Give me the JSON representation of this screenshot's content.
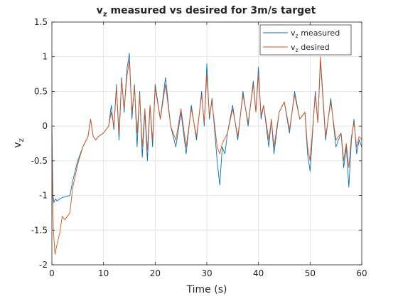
{
  "chart_data": {
    "type": "line",
    "title": {
      "main": "v",
      "sub": "z",
      "rest": " measured vs desired for 3m/s target"
    },
    "xlabel": "Time (s)",
    "ylabel": {
      "main": "v",
      "sub": "z"
    },
    "xlim": [
      0,
      60
    ],
    "ylim": [
      -2,
      1.5
    ],
    "xticks": [
      0,
      10,
      20,
      30,
      40,
      50,
      60
    ],
    "yticks": [
      -2,
      -1.5,
      -1,
      -0.5,
      0,
      0.5,
      1,
      1.5
    ],
    "xtick_labels": [
      "0",
      "10",
      "20",
      "30",
      "40",
      "50",
      "60"
    ],
    "ytick_labels": [
      "-2",
      "-1.5",
      "-1",
      "-0.5",
      "0",
      "0.5",
      "1",
      "1.5"
    ],
    "grid": true,
    "legend_position": "top-right",
    "series": [
      {
        "name": {
          "main": "v",
          "sub": "z",
          "rest": " measured"
        },
        "color": "#0072BD",
        "x": [
          0,
          0.1,
          0.2,
          0.4,
          0.7,
          1,
          1.5,
          2,
          2.5,
          3,
          3.5,
          4,
          5,
          6,
          7,
          7.5,
          8,
          8.5,
          9,
          10,
          11,
          11.5,
          12,
          12.5,
          13,
          13.5,
          14,
          14.5,
          15,
          15.5,
          16,
          16.5,
          17,
          17.5,
          18,
          18.5,
          19,
          19.5,
          20,
          21,
          22,
          23,
          24,
          25,
          26,
          27,
          28,
          29,
          29.5,
          30,
          30.5,
          31,
          32,
          32.5,
          33,
          33.5,
          34,
          35,
          36,
          37,
          38,
          39,
          39.5,
          40,
          40.5,
          41,
          42,
          42.5,
          43,
          44,
          45,
          46,
          47,
          48,
          49,
          49.5,
          50,
          51,
          51.5,
          52,
          53,
          54,
          55,
          56,
          56.5,
          57,
          57.5,
          58,
          58.5,
          59,
          59.5,
          60
        ],
        "y": [
          0,
          -0.5,
          -1.0,
          -1.1,
          -1.05,
          -1.08,
          -1.05,
          -1.03,
          -1.02,
          -1.01,
          -1.0,
          -0.8,
          -0.5,
          -0.3,
          -0.15,
          0.1,
          -0.15,
          -0.2,
          -0.15,
          -0.1,
          0.0,
          0.3,
          -0.05,
          0.6,
          -0.2,
          0.7,
          0.2,
          0.8,
          1.05,
          0.1,
          0.6,
          -0.3,
          0.5,
          -0.45,
          0.2,
          -0.5,
          0.3,
          -0.3,
          0.6,
          0.1,
          0.7,
          0.0,
          -0.3,
          0.2,
          -0.4,
          0.3,
          -0.2,
          0.5,
          0.0,
          0.9,
          0.1,
          0.4,
          -0.5,
          -0.85,
          -0.3,
          -0.4,
          -0.1,
          0.3,
          -0.2,
          0.5,
          0.0,
          0.65,
          0.2,
          0.85,
          0.1,
          0.3,
          -0.3,
          0.1,
          -0.4,
          0.2,
          0.35,
          -0.1,
          0.5,
          0.1,
          0.2,
          -0.4,
          -0.65,
          0.5,
          0.05,
          0.95,
          -0.2,
          0.4,
          -0.3,
          -0.1,
          -0.6,
          -0.3,
          -0.88,
          -0.2,
          0.1,
          -0.4,
          -0.2,
          -0.3
        ]
      },
      {
        "name": {
          "main": "v",
          "sub": "z",
          "rest": " desired"
        },
        "color": "#D95319",
        "x": [
          0,
          0.1,
          0.3,
          0.6,
          1,
          1.5,
          2,
          2.5,
          3,
          3.5,
          4,
          5,
          6,
          7,
          7.5,
          8,
          8.5,
          9,
          10,
          11,
          11.5,
          12,
          12.5,
          13,
          13.5,
          14,
          14.5,
          15,
          15.5,
          16,
          16.5,
          17,
          17.5,
          18,
          18.5,
          19,
          19.5,
          20,
          21,
          22,
          23,
          24,
          25,
          26,
          27,
          28,
          29,
          29.5,
          30,
          30.5,
          31,
          32,
          32.5,
          33,
          34,
          35,
          36,
          37,
          38,
          39,
          39.5,
          40,
          40.5,
          41,
          42,
          42.5,
          43,
          44,
          45,
          46,
          47,
          48,
          49,
          49.5,
          50,
          51,
          51.5,
          52,
          53,
          54,
          55,
          56,
          56.5,
          57,
          57.5,
          58,
          58.5,
          59,
          59.5,
          60
        ],
        "y": [
          0,
          -0.9,
          -1.5,
          -1.85,
          -1.7,
          -1.55,
          -1.3,
          -1.35,
          -1.3,
          -1.25,
          -0.9,
          -0.55,
          -0.3,
          -0.15,
          0.1,
          -0.15,
          -0.2,
          -0.15,
          -0.1,
          0.0,
          0.2,
          0.0,
          0.55,
          -0.1,
          0.65,
          0.25,
          0.7,
          0.95,
          0.2,
          0.55,
          -0.1,
          0.45,
          -0.3,
          0.25,
          -0.35,
          0.3,
          -0.2,
          0.55,
          0.1,
          0.6,
          0.0,
          -0.2,
          0.25,
          -0.3,
          0.25,
          -0.15,
          0.45,
          0.05,
          0.75,
          0.15,
          0.35,
          -0.3,
          -0.4,
          -0.25,
          -0.1,
          0.25,
          -0.15,
          0.45,
          0.05,
          0.6,
          0.2,
          0.75,
          0.15,
          0.3,
          -0.2,
          0.1,
          -0.3,
          0.2,
          0.35,
          -0.05,
          0.45,
          0.1,
          0.2,
          -0.3,
          -0.5,
          0.45,
          0.05,
          1.0,
          -0.15,
          0.35,
          -0.2,
          -0.1,
          -0.5,
          -0.25,
          -0.6,
          -0.15,
          0.05,
          -0.3,
          -0.15,
          -0.2
        ]
      }
    ]
  }
}
